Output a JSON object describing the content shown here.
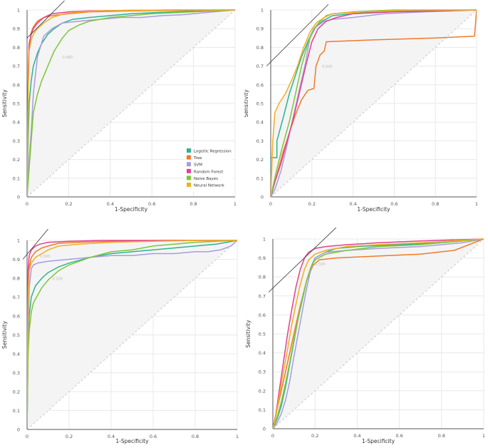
{
  "figure": {
    "x_ticks": [
      "0",
      "0.2",
      "0.4",
      "0.6",
      "0.8",
      "1"
    ],
    "y_ticks": [
      "0",
      "0.1",
      "0.2",
      "0.3",
      "0.4",
      "0.5",
      "0.6",
      "0.7",
      "0.8",
      "0.9",
      "1"
    ]
  },
  "colors": {
    "Logistic Regression": "#2bb58f",
    "Tree": "#f07a2a",
    "SVM": "#a99be0",
    "Random Forest": "#e4418f",
    "Naive Bayes": "#7dc63a",
    "Neural Network": "#f2ae22",
    "plot_background": "#f4f4f4",
    "diagonal": "#c8c8c8",
    "threshold_line": "#333333"
  },
  "chart_data": [
    {
      "type": "line",
      "title": "",
      "xlabel": "1-Specificity",
      "ylabel": "Sensitivity",
      "xlim": [
        0,
        1
      ],
      "ylim": [
        0,
        1
      ],
      "grid": true,
      "legend": {
        "position": "bottom-right",
        "entries": [
          "Logistic Regression",
          "Tree",
          "SVM",
          "Random Forest",
          "Naive Bayes",
          "Neural Network"
        ]
      },
      "annotations": [
        {
          "text": "0.480",
          "x": 0.17,
          "y": 0.74
        }
      ],
      "threshold_line": [
        [
          0,
          0.85
        ],
        [
          0.18,
          1.05
        ]
      ],
      "series": [
        {
          "name": "Logistic Regression",
          "x": [
            0,
            0.005,
            0.01,
            0.02,
            0.03,
            0.05,
            0.07,
            0.1,
            0.13,
            0.17,
            0.22,
            0.3,
            0.4,
            0.5,
            0.6,
            0.7,
            0.8,
            0.9,
            1
          ],
          "y": [
            0,
            0.3,
            0.5,
            0.62,
            0.7,
            0.77,
            0.82,
            0.87,
            0.9,
            0.93,
            0.95,
            0.96,
            0.97,
            0.98,
            0.985,
            0.99,
            0.995,
            0.998,
            1
          ]
        },
        {
          "name": "Tree",
          "x": [
            0,
            0.005,
            0.01,
            0.02,
            0.03,
            0.05,
            0.08,
            0.12,
            0.2,
            0.3,
            0.5,
            0.7,
            1
          ],
          "y": [
            0,
            0.6,
            0.8,
            0.88,
            0.91,
            0.94,
            0.96,
            0.97,
            0.98,
            0.99,
            0.995,
            0.998,
            1
          ]
        },
        {
          "name": "SVM",
          "x": [
            0,
            0.005,
            0.01,
            0.02,
            0.03,
            0.05,
            0.08,
            0.12,
            0.17,
            0.25,
            0.35,
            0.45,
            0.55,
            0.65,
            0.75,
            0.85,
            0.95,
            1
          ],
          "y": [
            0,
            0.1,
            0.2,
            0.35,
            0.55,
            0.75,
            0.86,
            0.9,
            0.93,
            0.94,
            0.95,
            0.96,
            0.96,
            0.97,
            0.975,
            0.985,
            0.995,
            1
          ]
        },
        {
          "name": "Random Forest",
          "x": [
            0,
            0.003,
            0.006,
            0.01,
            0.02,
            0.03,
            0.05,
            0.08,
            0.12,
            0.2,
            0.3,
            0.5,
            0.7,
            1
          ],
          "y": [
            0,
            0.45,
            0.7,
            0.82,
            0.87,
            0.9,
            0.93,
            0.96,
            0.98,
            0.99,
            0.995,
            0.998,
            1,
            1
          ]
        },
        {
          "name": "Naive Bayes",
          "x": [
            0,
            0.01,
            0.02,
            0.03,
            0.05,
            0.07,
            0.1,
            0.13,
            0.17,
            0.2,
            0.25,
            0.3,
            0.4,
            0.5,
            0.6,
            0.7,
            0.8,
            0.9,
            1
          ],
          "y": [
            0,
            0.15,
            0.3,
            0.45,
            0.55,
            0.62,
            0.7,
            0.78,
            0.85,
            0.89,
            0.92,
            0.94,
            0.96,
            0.97,
            0.98,
            0.985,
            0.99,
            0.995,
            1
          ]
        },
        {
          "name": "Neural Network",
          "x": [
            0,
            0.003,
            0.006,
            0.01,
            0.02,
            0.03,
            0.05,
            0.08,
            0.12,
            0.18,
            0.25,
            0.35,
            0.5,
            0.7,
            1
          ],
          "y": [
            0,
            0.3,
            0.6,
            0.78,
            0.84,
            0.87,
            0.9,
            0.93,
            0.96,
            0.98,
            0.99,
            0.995,
            0.998,
            1,
            1
          ]
        }
      ]
    },
    {
      "type": "line",
      "title": "",
      "xlabel": "1-Specificity",
      "ylabel": "Sensitivity",
      "xlim": [
        0,
        1
      ],
      "ylim": [
        0,
        1
      ],
      "grid": true,
      "annotations": [
        {
          "text": "0.500",
          "x": 0.25,
          "y": 0.69
        }
      ],
      "threshold_line": [
        [
          -0.02,
          0.7
        ],
        [
          0.28,
          1.03
        ]
      ],
      "series": [
        {
          "name": "Logistic Regression",
          "x": [
            0,
            0,
            0.03,
            0.03,
            0.06,
            0.09,
            0.12,
            0.15,
            0.18,
            0.21,
            0.25,
            0.3,
            0.5,
            1
          ],
          "y": [
            0,
            0.21,
            0.21,
            0.3,
            0.42,
            0.55,
            0.65,
            0.75,
            0.83,
            0.9,
            0.94,
            0.97,
            0.99,
            1
          ]
        },
        {
          "name": "Tree",
          "x": [
            0,
            0.03,
            0.06,
            0.09,
            0.12,
            0.15,
            0.18,
            0.21,
            0.22,
            0.24,
            0.26,
            0.27,
            0.5,
            0.8,
            0.99,
            1
          ],
          "y": [
            0,
            0.12,
            0.24,
            0.34,
            0.44,
            0.52,
            0.57,
            0.58,
            0.7,
            0.76,
            0.78,
            0.83,
            0.84,
            0.85,
            0.86,
            1
          ]
        },
        {
          "name": "SVM",
          "x": [
            0,
            0.02,
            0.05,
            0.08,
            0.11,
            0.14,
            0.17,
            0.19,
            0.22,
            0.26,
            0.3,
            0.4,
            0.55,
            0.75,
            1
          ],
          "y": [
            0,
            0.04,
            0.14,
            0.28,
            0.43,
            0.58,
            0.72,
            0.85,
            0.91,
            0.94,
            0.95,
            0.96,
            0.98,
            0.99,
            1
          ]
        },
        {
          "name": "Random Forest",
          "x": [
            0,
            0.02,
            0.05,
            0.08,
            0.11,
            0.14,
            0.17,
            0.2,
            0.23,
            0.27,
            0.32,
            0.4,
            0.6,
            1
          ],
          "y": [
            0,
            0.08,
            0.18,
            0.3,
            0.42,
            0.56,
            0.7,
            0.83,
            0.9,
            0.94,
            0.96,
            0.98,
            0.99,
            1
          ]
        },
        {
          "name": "Naive Bayes",
          "x": [
            0,
            0.03,
            0.06,
            0.09,
            0.12,
            0.15,
            0.18,
            0.21,
            0.24,
            0.27,
            0.3,
            0.4,
            0.6,
            1
          ],
          "y": [
            0,
            0.15,
            0.28,
            0.4,
            0.55,
            0.7,
            0.82,
            0.9,
            0.94,
            0.97,
            0.98,
            0.99,
            1,
            1
          ]
        },
        {
          "name": "Neural Network",
          "x": [
            0,
            0.01,
            0.02,
            0.04,
            0.07,
            0.1,
            0.13,
            0.16,
            0.19,
            0.22,
            0.26,
            0.3,
            0.45,
            0.7,
            1
          ],
          "y": [
            0,
            0.3,
            0.45,
            0.5,
            0.55,
            0.62,
            0.7,
            0.8,
            0.88,
            0.93,
            0.96,
            0.98,
            0.99,
            1,
            1
          ]
        }
      ]
    },
    {
      "type": "line",
      "title": "",
      "xlabel": "1-Specificity",
      "ylabel": "Sensitivity",
      "xlim": [
        0,
        1
      ],
      "ylim": [
        0,
        1
      ],
      "grid": true,
      "annotations": [
        {
          "text": "0.500",
          "x": 0.06,
          "y": 0.91
        },
        {
          "text": "0.500",
          "x": 0.12,
          "y": 0.79
        }
      ],
      "threshold_line": [
        [
          -0.02,
          0.9
        ],
        [
          0.1,
          1.06
        ]
      ],
      "series": [
        {
          "name": "Logistic Regression",
          "x": [
            0,
            0.005,
            0.01,
            0.02,
            0.04,
            0.07,
            0.1,
            0.15,
            0.2,
            0.3,
            0.4,
            0.5,
            0.6,
            0.7,
            0.8,
            0.9,
            1
          ],
          "y": [
            0,
            0.45,
            0.6,
            0.7,
            0.76,
            0.8,
            0.83,
            0.86,
            0.88,
            0.91,
            0.93,
            0.94,
            0.95,
            0.96,
            0.97,
            0.98,
            1
          ]
        },
        {
          "name": "Tree",
          "x": [
            0,
            0.003,
            0.006,
            0.01,
            0.02,
            0.04,
            0.07,
            0.1,
            0.15,
            0.25,
            0.4,
            0.7,
            1
          ],
          "y": [
            0,
            0.5,
            0.75,
            0.86,
            0.91,
            0.94,
            0.96,
            0.97,
            0.985,
            0.99,
            0.995,
            1,
            1
          ]
        },
        {
          "name": "SVM",
          "x": [
            0,
            0.005,
            0.01,
            0.02,
            0.03,
            0.05,
            0.1,
            0.2,
            0.3,
            0.4,
            0.5,
            0.6,
            0.7,
            0.8,
            0.86,
            0.92,
            0.97,
            1
          ],
          "y": [
            0,
            0.5,
            0.75,
            0.85,
            0.87,
            0.88,
            0.89,
            0.9,
            0.91,
            0.92,
            0.92,
            0.93,
            0.93,
            0.94,
            0.94,
            0.95,
            0.97,
            1
          ]
        },
        {
          "name": "Random Forest",
          "x": [
            0,
            0.002,
            0.005,
            0.01,
            0.02,
            0.04,
            0.06,
            0.1,
            0.2,
            0.35,
            0.6,
            1
          ],
          "y": [
            0,
            0.6,
            0.85,
            0.92,
            0.95,
            0.97,
            0.98,
            0.99,
            0.995,
            1,
            1,
            1
          ]
        },
        {
          "name": "Naive Bayes",
          "x": [
            0,
            0.005,
            0.01,
            0.02,
            0.03,
            0.05,
            0.07,
            0.1,
            0.15,
            0.2,
            0.3,
            0.4,
            0.5,
            0.6,
            0.7,
            0.8,
            0.9,
            1
          ],
          "y": [
            0,
            0.4,
            0.52,
            0.62,
            0.67,
            0.71,
            0.75,
            0.79,
            0.84,
            0.87,
            0.91,
            0.94,
            0.95,
            0.97,
            0.98,
            0.99,
            0.995,
            1
          ]
        },
        {
          "name": "Neural Network",
          "x": [
            0,
            0.003,
            0.006,
            0.01,
            0.02,
            0.04,
            0.07,
            0.1,
            0.15,
            0.25,
            0.4,
            0.6,
            0.8,
            1
          ],
          "y": [
            0,
            0.5,
            0.75,
            0.84,
            0.88,
            0.91,
            0.93,
            0.95,
            0.97,
            0.98,
            0.99,
            0.995,
            1,
            1
          ]
        }
      ]
    },
    {
      "type": "line",
      "title": "",
      "xlabel": "1-Specificity",
      "ylabel": "Sensitivity",
      "xlim": [
        0,
        1
      ],
      "ylim": [
        0,
        1
      ],
      "grid": true,
      "annotations": [
        {
          "text": "0.500",
          "x": 0.2,
          "y": 0.86
        }
      ],
      "threshold_line": [
        [
          -0.02,
          0.72
        ],
        [
          0.3,
          1.06
        ]
      ],
      "series": [
        {
          "name": "Logistic Regression",
          "x": [
            0,
            0.02,
            0.04,
            0.06,
            0.08,
            0.1,
            0.12,
            0.14,
            0.16,
            0.18,
            0.2,
            0.25,
            0.3,
            0.4,
            0.6,
            0.8,
            1
          ],
          "y": [
            0,
            0.05,
            0.12,
            0.22,
            0.34,
            0.46,
            0.58,
            0.68,
            0.78,
            0.85,
            0.9,
            0.93,
            0.95,
            0.96,
            0.97,
            0.98,
            1
          ]
        },
        {
          "name": "Tree",
          "x": [
            0,
            0.02,
            0.04,
            0.07,
            0.1,
            0.13,
            0.16,
            0.19,
            0.22,
            0.3,
            0.5,
            0.7,
            0.86,
            1
          ],
          "y": [
            0,
            0.1,
            0.2,
            0.35,
            0.5,
            0.65,
            0.78,
            0.86,
            0.89,
            0.9,
            0.91,
            0.92,
            0.94,
            1
          ]
        },
        {
          "name": "SVM",
          "x": [
            0,
            0.02,
            0.04,
            0.06,
            0.08,
            0.1,
            0.12,
            0.14,
            0.16,
            0.18,
            0.2,
            0.25,
            0.35,
            0.5,
            0.7,
            0.9,
            1
          ],
          "y": [
            0,
            0.03,
            0.08,
            0.15,
            0.25,
            0.38,
            0.5,
            0.62,
            0.74,
            0.84,
            0.9,
            0.93,
            0.94,
            0.95,
            0.96,
            0.98,
            1
          ]
        },
        {
          "name": "Random Forest",
          "x": [
            0,
            0.015,
            0.03,
            0.05,
            0.07,
            0.09,
            0.11,
            0.13,
            0.15,
            0.17,
            0.2,
            0.25,
            0.35,
            0.5,
            0.7,
            1
          ],
          "y": [
            0,
            0.08,
            0.2,
            0.35,
            0.5,
            0.63,
            0.75,
            0.84,
            0.9,
            0.93,
            0.95,
            0.96,
            0.97,
            0.98,
            0.99,
            1
          ]
        },
        {
          "name": "Naive Bayes",
          "x": [
            0,
            0.02,
            0.04,
            0.06,
            0.08,
            0.1,
            0.12,
            0.14,
            0.16,
            0.18,
            0.2,
            0.25,
            0.35,
            0.5,
            0.7,
            0.9,
            1
          ],
          "y": [
            0,
            0.06,
            0.14,
            0.24,
            0.35,
            0.47,
            0.58,
            0.69,
            0.78,
            0.85,
            0.89,
            0.92,
            0.94,
            0.96,
            0.97,
            0.99,
            1
          ]
        },
        {
          "name": "Neural Network",
          "x": [
            0,
            0.015,
            0.03,
            0.05,
            0.07,
            0.09,
            0.11,
            0.13,
            0.15,
            0.17,
            0.2,
            0.25,
            0.35,
            0.5,
            0.7,
            1
          ],
          "y": [
            0,
            0.07,
            0.17,
            0.3,
            0.42,
            0.55,
            0.66,
            0.76,
            0.84,
            0.89,
            0.92,
            0.94,
            0.96,
            0.97,
            0.98,
            1
          ]
        }
      ]
    }
  ]
}
